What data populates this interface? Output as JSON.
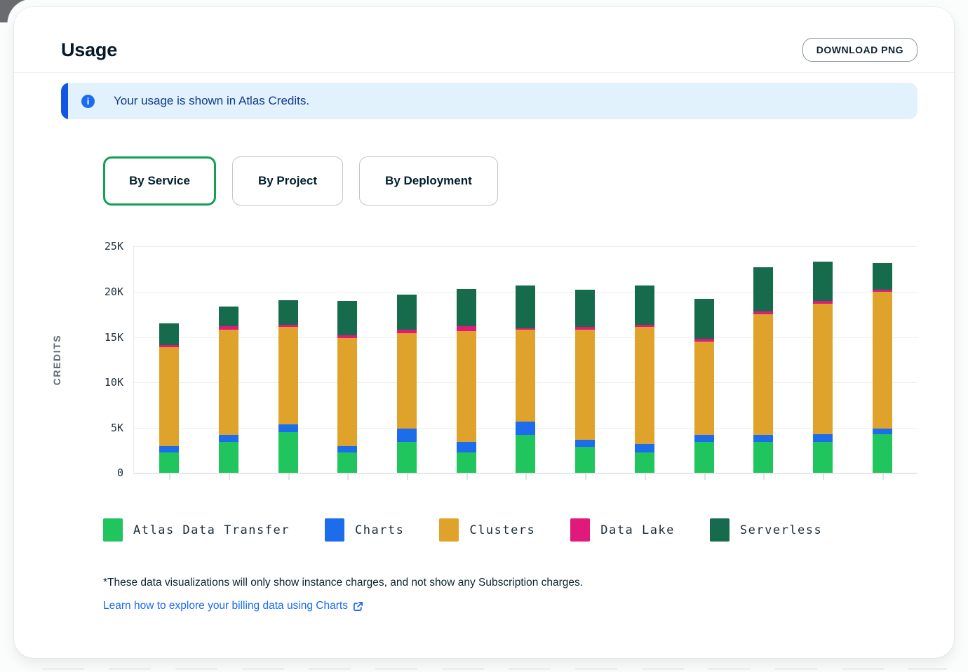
{
  "header": {
    "title": "Usage",
    "download_button": "DOWNLOAD PNG"
  },
  "banner": {
    "text": "Your usage is shown in Atlas Credits.",
    "icon": "info-icon",
    "accent_color": "#1254E4",
    "icon_color": "#1C6BF0",
    "background_color": "#E2F2FC",
    "text_color": "#10398C"
  },
  "tabs": [
    {
      "label": "By Service",
      "active": true
    },
    {
      "label": "By Project",
      "active": false
    },
    {
      "label": "By Deployment",
      "active": false
    }
  ],
  "colors": {
    "active_tab_border": "#12A150",
    "link": "#1A6AF2",
    "axis_text": "#21313C",
    "axis_title": "#5D6C74"
  },
  "chart_data": {
    "type": "bar",
    "stacked": true,
    "title": "",
    "xlabel": "",
    "ylabel": "CREDITS",
    "ylim": [
      0,
      25000
    ],
    "ytick_labels": [
      "0",
      "5K",
      "10K",
      "15K",
      "20K",
      "25K"
    ],
    "num_bars": 13,
    "x_tick_labels_visible": false,
    "grid": true,
    "legend_position": "bottom",
    "series": [
      {
        "name": "Atlas Data Transfer",
        "color": "#21C55E",
        "values": [
          2300,
          3400,
          4500,
          2300,
          3400,
          2300,
          4200,
          2900,
          2300,
          3400,
          3400,
          3400,
          4300
        ]
      },
      {
        "name": "Charts",
        "color": "#1D6CEB",
        "values": [
          700,
          800,
          900,
          700,
          1500,
          1100,
          1500,
          800,
          900,
          800,
          800,
          900,
          600
        ]
      },
      {
        "name": "Clusters",
        "color": "#DFA32B",
        "values": [
          10900,
          11600,
          10700,
          11900,
          10500,
          12300,
          10100,
          12100,
          12900,
          10300,
          13300,
          14400,
          15100
        ]
      },
      {
        "name": "Data Lake",
        "color": "#E1197B",
        "values": [
          200,
          400,
          300,
          300,
          400,
          500,
          200,
          300,
          300,
          300,
          300,
          300,
          200
        ]
      },
      {
        "name": "Serverless",
        "color": "#176B4D",
        "values": [
          2400,
          2200,
          2700,
          3800,
          3900,
          4100,
          4700,
          4100,
          4300,
          4400,
          4900,
          4300,
          3000
        ]
      }
    ]
  },
  "footer": {
    "note": "*These data visualizations will only show instance charges, and not show any Subscription charges.",
    "link_text": "Learn how to explore your billing data using Charts",
    "link_icon": "external-link-icon"
  }
}
